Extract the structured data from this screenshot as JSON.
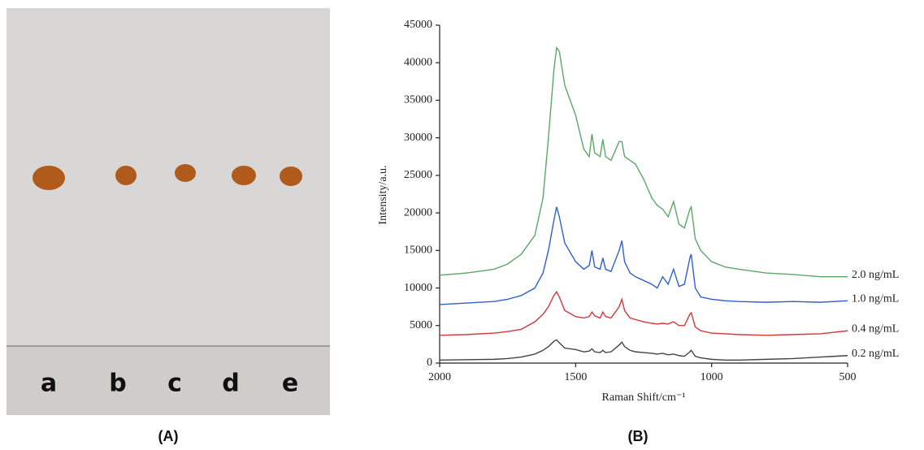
{
  "photo": {
    "label": "(A)",
    "lanes": [
      "a",
      "b",
      "c",
      "d",
      "e"
    ]
  },
  "chart_data": {
    "type": "line",
    "panel_label": "(B)",
    "x_label": "Raman Shift/cm⁻¹",
    "y_label": "Intensity/a.u.",
    "x": [
      2000,
      1900,
      1800,
      1750,
      1700,
      1650,
      1620,
      1600,
      1580,
      1570,
      1560,
      1540,
      1500,
      1470,
      1450,
      1440,
      1430,
      1410,
      1400,
      1390,
      1370,
      1340,
      1330,
      1320,
      1300,
      1280,
      1250,
      1220,
      1200,
      1180,
      1160,
      1140,
      1120,
      1100,
      1080,
      1075,
      1060,
      1040,
      1000,
      950,
      900,
      800,
      700,
      600,
      500
    ],
    "xlim": [
      2000,
      500
    ],
    "xticks": [
      2000,
      1500,
      1000,
      500
    ],
    "ylim": [
      0,
      45000
    ],
    "yticks": [
      0,
      5000,
      10000,
      15000,
      20000,
      25000,
      30000,
      35000,
      40000,
      45000
    ],
    "grid": false,
    "series": [
      {
        "name": "2.0 ng/mL",
        "color": "#5aa867",
        "values": [
          11700,
          12000,
          12500,
          13200,
          14500,
          17000,
          22000,
          30000,
          39000,
          42000,
          41500,
          37000,
          33000,
          28500,
          27500,
          30500,
          28000,
          27500,
          29800,
          27500,
          27000,
          29500,
          29500,
          27500,
          27000,
          26500,
          24500,
          22000,
          21000,
          20500,
          19500,
          21500,
          18500,
          18000,
          20500,
          20800,
          16500,
          15000,
          13500,
          12800,
          12500,
          12000,
          11800,
          11500,
          11500
        ]
      },
      {
        "name": "1.0 ng/mL",
        "color": "#2f5fd0",
        "values": [
          7800,
          8000,
          8200,
          8500,
          9000,
          10000,
          12000,
          15000,
          19000,
          20800,
          19500,
          16000,
          13500,
          12500,
          13000,
          15000,
          12800,
          12500,
          14000,
          12500,
          12200,
          15000,
          16300,
          13500,
          12000,
          11500,
          11000,
          10500,
          10000,
          11500,
          10500,
          12500,
          10200,
          10500,
          14000,
          14500,
          10000,
          8800,
          8500,
          8300,
          8200,
          8100,
          8200,
          8100,
          8300
        ]
      },
      {
        "name": "0.4 ng/mL",
        "color": "#d2373a",
        "values": [
          3700,
          3800,
          4000,
          4200,
          4500,
          5500,
          6500,
          7500,
          9000,
          9500,
          8800,
          7000,
          6200,
          6000,
          6200,
          6800,
          6300,
          6000,
          6800,
          6200,
          6000,
          7500,
          8500,
          7000,
          6000,
          5800,
          5500,
          5300,
          5200,
          5300,
          5200,
          5500,
          5000,
          5000,
          6500,
          6700,
          4800,
          4300,
          4000,
          3900,
          3800,
          3700,
          3800,
          3900,
          4300
        ]
      },
      {
        "name": "0.2 ng/mL",
        "color": "#444444",
        "values": [
          400,
          450,
          500,
          600,
          800,
          1200,
          1700,
          2200,
          2900,
          3100,
          2700,
          2000,
          1800,
          1500,
          1600,
          1900,
          1500,
          1400,
          1700,
          1400,
          1500,
          2400,
          2800,
          2200,
          1700,
          1500,
          1400,
          1300,
          1200,
          1300,
          1100,
          1200,
          1000,
          900,
          1500,
          1700,
          900,
          700,
          500,
          400,
          400,
          500,
          600,
          800,
          1000
        ]
      }
    ]
  }
}
